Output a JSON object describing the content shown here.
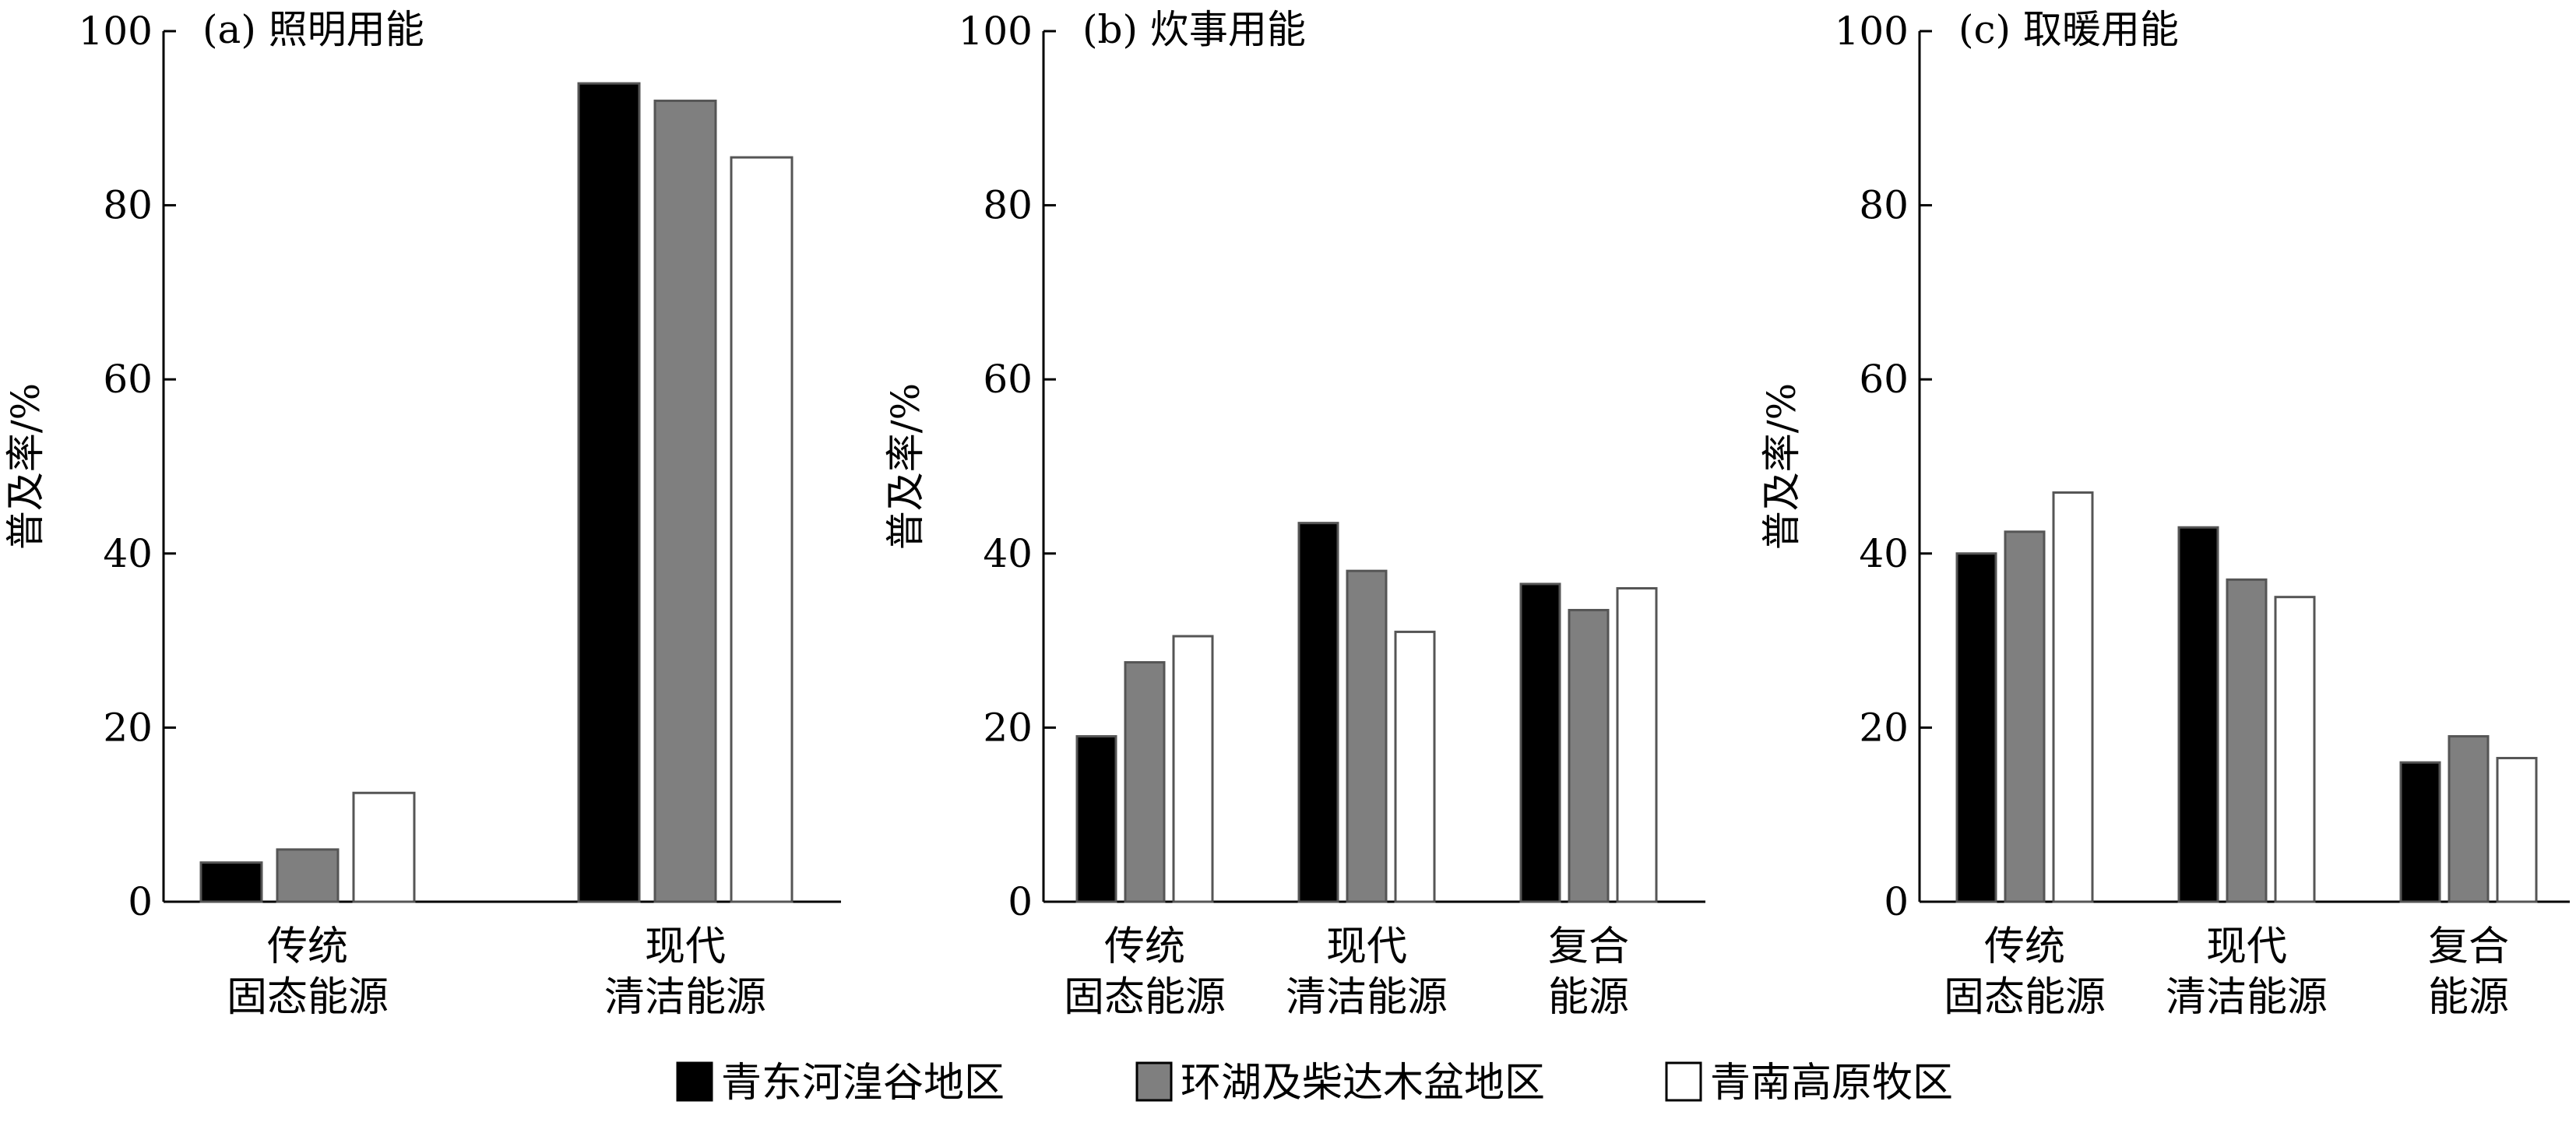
{
  "chart_data": [
    {
      "type": "bar",
      "title": "(a) 照明用能",
      "ylabel": "普及率/%",
      "ylim": [
        0,
        100
      ],
      "yticks": [
        "0",
        "20",
        "40",
        "60",
        "80",
        "100"
      ],
      "categories": [
        [
          "传统",
          "固态能源"
        ],
        [
          "现代",
          "清洁能源"
        ]
      ],
      "series": [
        {
          "name": "青东河湟谷地区",
          "values": [
            4.5,
            94
          ]
        },
        {
          "name": "环湖及柴达木盆地区",
          "values": [
            6,
            92
          ]
        },
        {
          "name": "青南高原牧区",
          "values": [
            12.5,
            85.5
          ]
        }
      ]
    },
    {
      "type": "bar",
      "title": "(b) 炊事用能",
      "ylabel": "普及率/%",
      "ylim": [
        0,
        100
      ],
      "yticks": [
        "0",
        "20",
        "40",
        "60",
        "80",
        "100"
      ],
      "categories": [
        [
          "传统",
          "固态能源"
        ],
        [
          "现代",
          "清洁能源"
        ],
        [
          "复合",
          "能源"
        ]
      ],
      "series": [
        {
          "name": "青东河湟谷地区",
          "values": [
            19,
            43.5,
            36.5
          ]
        },
        {
          "name": "环湖及柴达木盆地区",
          "values": [
            27.5,
            38,
            33.5
          ]
        },
        {
          "name": "青南高原牧区",
          "values": [
            30.5,
            31,
            36
          ]
        }
      ]
    },
    {
      "type": "bar",
      "title": "(c) 取暖用能",
      "ylabel": "普及率/%",
      "ylim": [
        0,
        100
      ],
      "yticks": [
        "0",
        "20",
        "40",
        "60",
        "80",
        "100"
      ],
      "categories": [
        [
          "传统",
          "固态能源"
        ],
        [
          "现代",
          "清洁能源"
        ],
        [
          "复合",
          "能源"
        ]
      ],
      "series": [
        {
          "name": "青东河湟谷地区",
          "values": [
            40,
            43,
            16
          ]
        },
        {
          "name": "环湖及柴达木盆地区",
          "values": [
            42.5,
            37,
            19
          ]
        },
        {
          "name": "青南高原牧区",
          "values": [
            47,
            35,
            16.5
          ]
        }
      ]
    }
  ],
  "legend": {
    "items": [
      {
        "label": "青东河湟谷地区",
        "color": "#000000"
      },
      {
        "label": "环湖及柴达木盆地区",
        "color": "#7f7f7f"
      },
      {
        "label": "青南高原牧区",
        "color": "#ffffff"
      }
    ]
  },
  "colors": {
    "series": [
      "#000000",
      "#7f7f7f",
      "#ffffff"
    ],
    "outline": "#555555"
  }
}
